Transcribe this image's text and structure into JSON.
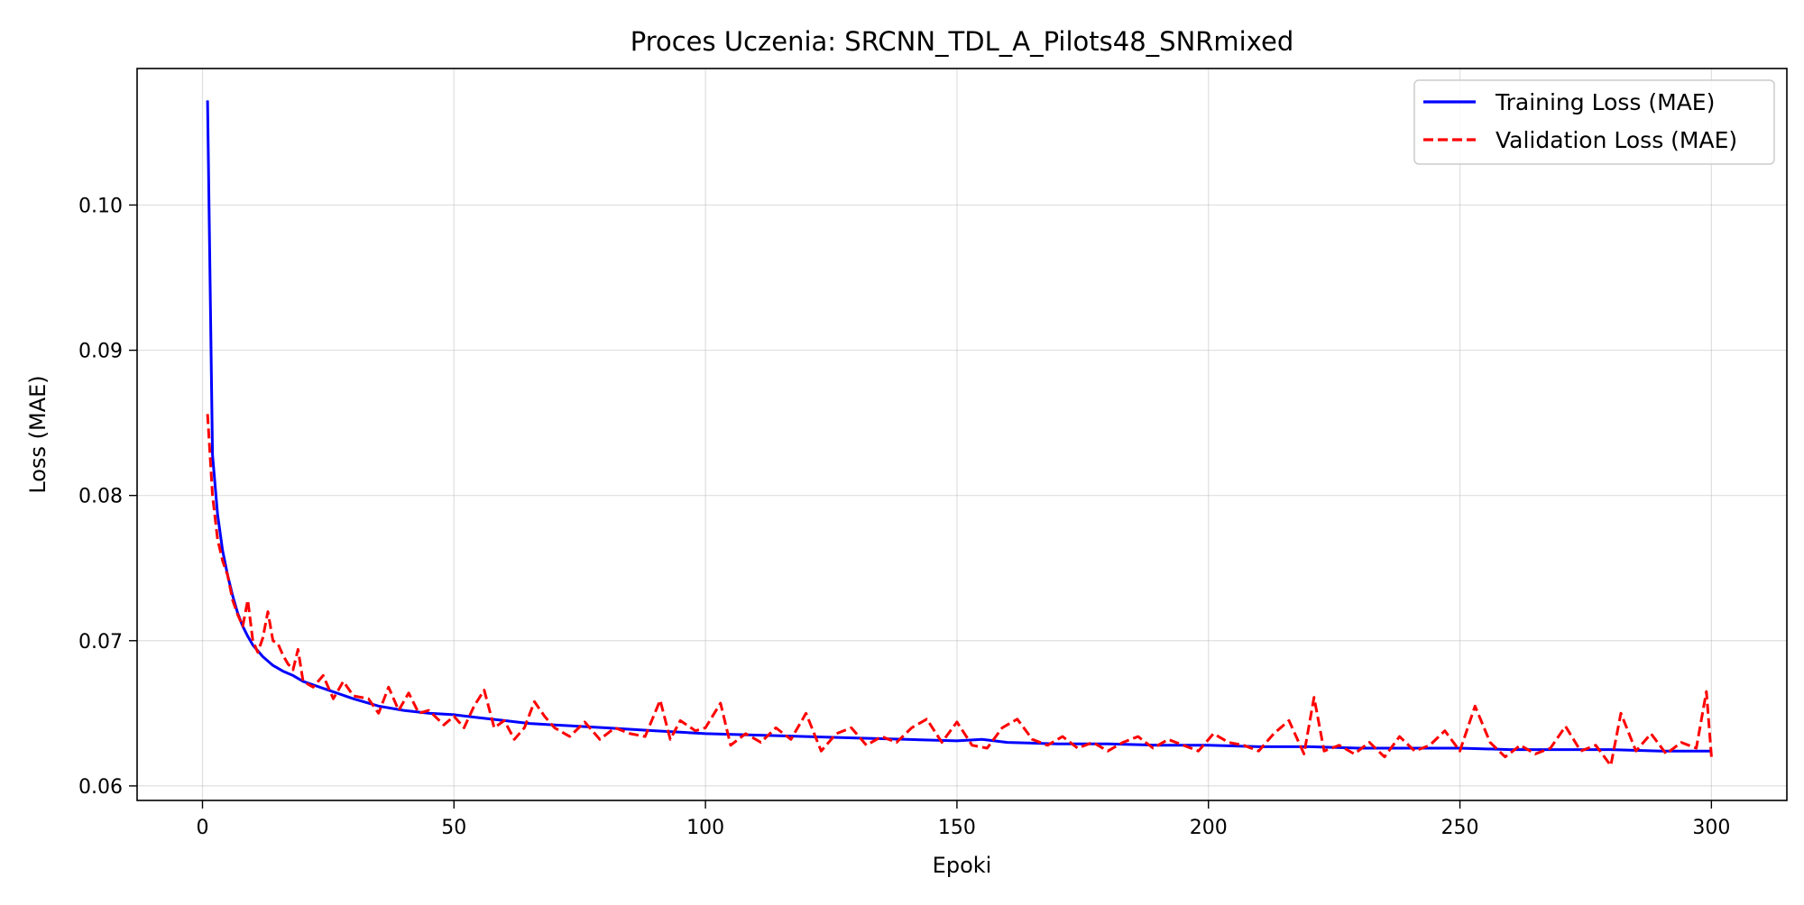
{
  "chart_data": {
    "type": "line",
    "title": "Proces Uczenia: SRCNN_TDL_A_Pilots48_SNRmixed",
    "xlabel": "Epoki",
    "ylabel": "Loss (MAE)",
    "xlim": [
      -13,
      315
    ],
    "ylim": [
      0.059,
      0.1094
    ],
    "xticks": [
      0,
      50,
      100,
      150,
      200,
      250,
      300
    ],
    "yticks": [
      0.06,
      0.07,
      0.08,
      0.09,
      0.1
    ],
    "xtick_labels": [
      "0",
      "50",
      "100",
      "150",
      "200",
      "250",
      "300"
    ],
    "ytick_labels": [
      "0.06",
      "0.07",
      "0.08",
      "0.09",
      "0.10"
    ],
    "grid": true,
    "legend_position": "top-right",
    "colors": {
      "training": "#0000ff",
      "validation": "#ff0000"
    },
    "series": [
      {
        "name": "Training Loss (MAE)",
        "style": "solid",
        "x": [
          1,
          2,
          3,
          4,
          5,
          6,
          7,
          8,
          9,
          10,
          12,
          14,
          16,
          18,
          20,
          25,
          30,
          35,
          40,
          45,
          50,
          55,
          60,
          65,
          70,
          80,
          90,
          100,
          110,
          120,
          130,
          140,
          150,
          155,
          160,
          170,
          180,
          190,
          200,
          210,
          220,
          230,
          240,
          250,
          260,
          270,
          280,
          290,
          300
        ],
        "values": [
          0.1072,
          0.0828,
          0.0787,
          0.0762,
          0.0745,
          0.0731,
          0.0719,
          0.071,
          0.0703,
          0.0697,
          0.0689,
          0.0683,
          0.0679,
          0.0676,
          0.0672,
          0.0666,
          0.066,
          0.0655,
          0.0652,
          0.065,
          0.0649,
          0.0647,
          0.0645,
          0.0643,
          0.0642,
          0.064,
          0.0638,
          0.0636,
          0.0635,
          0.0634,
          0.0633,
          0.0632,
          0.0631,
          0.0632,
          0.063,
          0.0629,
          0.0629,
          0.0628,
          0.0628,
          0.0627,
          0.0627,
          0.0626,
          0.0626,
          0.0626,
          0.0625,
          0.0625,
          0.0625,
          0.0624,
          0.0624
        ]
      },
      {
        "name": "Validation Loss (MAE)",
        "style": "dashed",
        "x": [
          1,
          2,
          3,
          4,
          5,
          6,
          7,
          8,
          9,
          10,
          11,
          12,
          13,
          14,
          15,
          16,
          17,
          18,
          19,
          20,
          22,
          24,
          26,
          28,
          30,
          33,
          35,
          37,
          39,
          41,
          43,
          45,
          48,
          50,
          52,
          54,
          56,
          58,
          60,
          62,
          64,
          66,
          68,
          70,
          73,
          76,
          79,
          82,
          85,
          88,
          91,
          93,
          95,
          98,
          100,
          103,
          105,
          108,
          111,
          114,
          117,
          120,
          123,
          126,
          129,
          132,
          135,
          138,
          141,
          144,
          147,
          150,
          153,
          156,
          159,
          162,
          165,
          168,
          171,
          174,
          177,
          180,
          183,
          186,
          189,
          192,
          195,
          198,
          201,
          204,
          207,
          210,
          213,
          216,
          219,
          221,
          223,
          226,
          229,
          232,
          235,
          238,
          241,
          244,
          247,
          250,
          253,
          256,
          259,
          262,
          265,
          268,
          271,
          274,
          277,
          280,
          282,
          285,
          288,
          291,
          294,
          297,
          299,
          300
        ],
        "values": [
          0.0856,
          0.08,
          0.077,
          0.0755,
          0.0745,
          0.0728,
          0.0718,
          0.071,
          0.0728,
          0.07,
          0.0692,
          0.0702,
          0.072,
          0.07,
          0.0698,
          0.069,
          0.0684,
          0.068,
          0.0694,
          0.0672,
          0.0668,
          0.0676,
          0.066,
          0.0672,
          0.0662,
          0.066,
          0.065,
          0.0668,
          0.0652,
          0.0664,
          0.065,
          0.0652,
          0.0642,
          0.0648,
          0.064,
          0.0655,
          0.0666,
          0.064,
          0.0645,
          0.0632,
          0.064,
          0.0658,
          0.0648,
          0.064,
          0.0634,
          0.0644,
          0.0632,
          0.064,
          0.0636,
          0.0634,
          0.0659,
          0.0632,
          0.0645,
          0.0638,
          0.064,
          0.0657,
          0.0628,
          0.0636,
          0.063,
          0.064,
          0.0632,
          0.065,
          0.0624,
          0.0636,
          0.064,
          0.0628,
          0.0634,
          0.063,
          0.064,
          0.0646,
          0.063,
          0.0644,
          0.0628,
          0.0626,
          0.064,
          0.0646,
          0.0632,
          0.0628,
          0.0634,
          0.0626,
          0.063,
          0.0624,
          0.063,
          0.0634,
          0.0626,
          0.0632,
          0.0628,
          0.0624,
          0.0636,
          0.063,
          0.0628,
          0.0624,
          0.0636,
          0.0645,
          0.0622,
          0.0661,
          0.0624,
          0.0628,
          0.0622,
          0.063,
          0.062,
          0.0634,
          0.0624,
          0.0628,
          0.0638,
          0.0624,
          0.0655,
          0.063,
          0.062,
          0.0628,
          0.0622,
          0.0626,
          0.0641,
          0.0624,
          0.0628,
          0.0614,
          0.065,
          0.0624,
          0.0636,
          0.0622,
          0.063,
          0.0626,
          0.0665,
          0.062
        ]
      }
    ]
  }
}
